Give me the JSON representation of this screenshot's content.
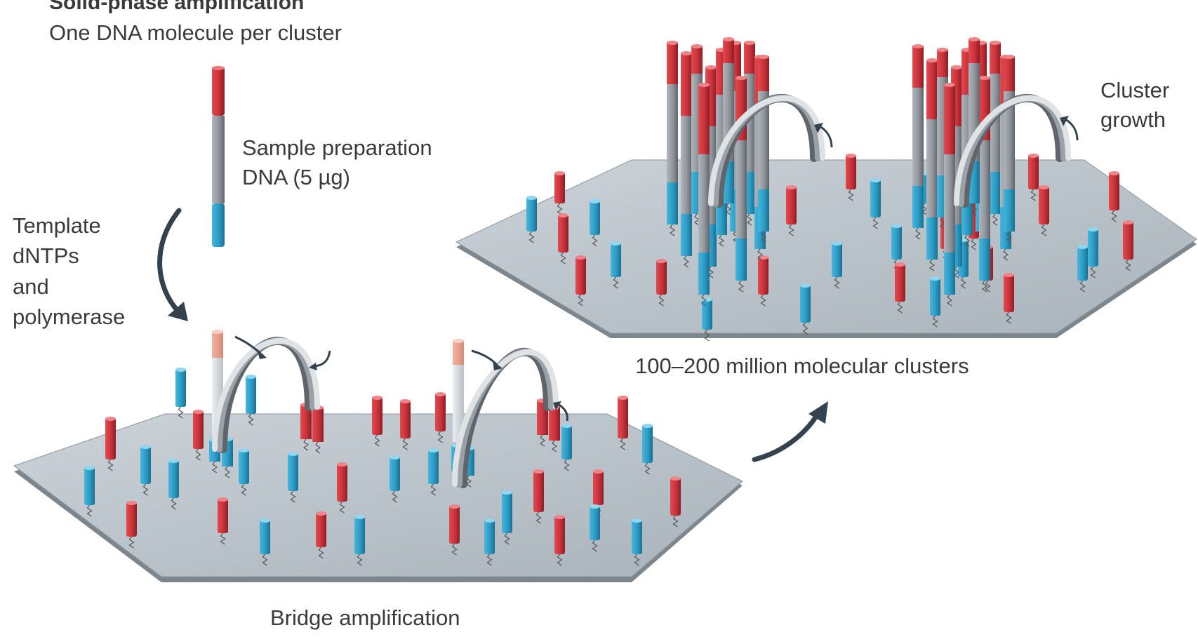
{
  "title": "Solid-phase amplification",
  "subtitle": "One DNA molecule per cluster",
  "sample_label": [
    "Sample preparation",
    "DNA (5 µg)"
  ],
  "template_label": [
    "Template",
    "dNTPs",
    "and",
    "polymerase"
  ],
  "clusters_label": "100–200 million molecular clusters",
  "growth_label": [
    "Cluster",
    "growth"
  ],
  "bridge_label": "Bridge amplification",
  "colors": {
    "red": "#c8323a",
    "blue": "#2b9bc4",
    "grey": "#8f959b",
    "pink": "#e99c8a",
    "plate": "#b9c2c9",
    "arrow": "#34424d"
  },
  "icons": [
    "dna-strand-icon",
    "flow-cell-plate",
    "bridge-arch-icon",
    "curved-arrow-icon"
  ]
}
